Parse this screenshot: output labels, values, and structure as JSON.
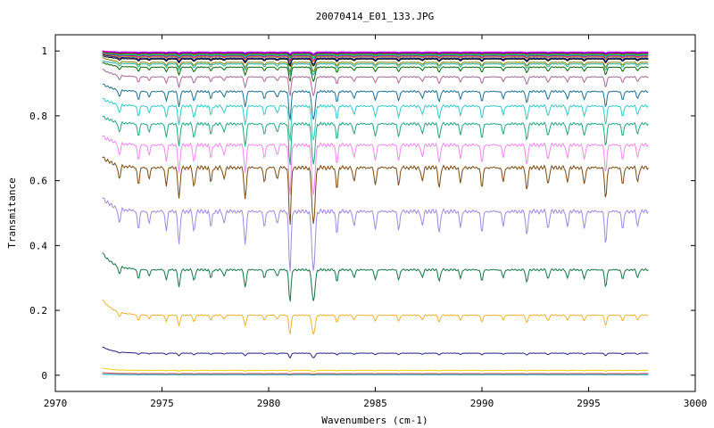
{
  "chart_data": {
    "type": "line",
    "title": "20070414_E01_133.JPG",
    "xlabel": "Wavenumbers (cm-1)",
    "ylabel": "Transmitance",
    "xlim": [
      2970,
      3000
    ],
    "ylim": [
      -0.05,
      1.05
    ],
    "x_ticks": [
      2970,
      2975,
      2980,
      2985,
      2990,
      2995,
      3000
    ],
    "y_ticks": [
      0,
      0.2,
      0.4,
      0.6,
      0.8,
      1
    ],
    "y_tick_labels": [
      "0",
      "0.2",
      "0.4",
      "0.6",
      "0.8",
      "1"
    ],
    "grid": false,
    "legend": "none",
    "x_range": [
      2972.2,
      2997.8
    ],
    "absorption_lines": [
      {
        "x": 2973.0,
        "depth": 0.25,
        "width": 0.07
      },
      {
        "x": 2973.9,
        "depth": 0.3,
        "width": 0.07
      },
      {
        "x": 2974.4,
        "depth": 0.2,
        "width": 0.07
      },
      {
        "x": 2975.2,
        "depth": 0.3,
        "width": 0.07
      },
      {
        "x": 2975.8,
        "depth": 0.55,
        "width": 0.07
      },
      {
        "x": 2976.5,
        "depth": 0.35,
        "width": 0.07
      },
      {
        "x": 2977.3,
        "depth": 0.25,
        "width": 0.07
      },
      {
        "x": 2977.9,
        "depth": 0.2,
        "width": 0.07
      },
      {
        "x": 2978.9,
        "depth": 0.55,
        "width": 0.07
      },
      {
        "x": 2979.8,
        "depth": 0.25,
        "width": 0.07
      },
      {
        "x": 2980.4,
        "depth": 0.2,
        "width": 0.07
      },
      {
        "x": 2981.0,
        "depth": 1.0,
        "width": 0.07
      },
      {
        "x": 2982.1,
        "depth": 1.0,
        "width": 0.1
      },
      {
        "x": 2983.2,
        "depth": 0.35,
        "width": 0.07
      },
      {
        "x": 2984.0,
        "depth": 0.25,
        "width": 0.07
      },
      {
        "x": 2985.0,
        "depth": 0.3,
        "width": 0.07
      },
      {
        "x": 2986.1,
        "depth": 0.3,
        "width": 0.07
      },
      {
        "x": 2987.2,
        "depth": 0.25,
        "width": 0.07
      },
      {
        "x": 2988.0,
        "depth": 0.35,
        "width": 0.07
      },
      {
        "x": 2989.0,
        "depth": 0.25,
        "width": 0.07
      },
      {
        "x": 2990.0,
        "depth": 0.35,
        "width": 0.07
      },
      {
        "x": 2991.0,
        "depth": 0.25,
        "width": 0.07
      },
      {
        "x": 2992.1,
        "depth": 0.4,
        "width": 0.07
      },
      {
        "x": 2993.1,
        "depth": 0.3,
        "width": 0.07
      },
      {
        "x": 2994.0,
        "depth": 0.25,
        "width": 0.07
      },
      {
        "x": 2994.8,
        "depth": 0.3,
        "width": 0.07
      },
      {
        "x": 2995.8,
        "depth": 0.55,
        "width": 0.07
      },
      {
        "x": 2996.6,
        "depth": 0.3,
        "width": 0.07
      },
      {
        "x": 2997.3,
        "depth": 0.25,
        "width": 0.07
      }
    ],
    "series": [
      {
        "color": "#ff00ff",
        "baseline": 0.997,
        "start": 1.0,
        "depth": 0.005
      },
      {
        "color": "#0000ff",
        "baseline": 0.995,
        "start": 1.0,
        "depth": 0.007
      },
      {
        "color": "#ff0000",
        "baseline": 0.993,
        "start": 0.998,
        "depth": 0.008
      },
      {
        "color": "#00aa00",
        "baseline": 0.99,
        "start": 0.997,
        "depth": 0.01
      },
      {
        "color": "#00c0c0",
        "baseline": 0.988,
        "start": 0.995,
        "depth": 0.012
      },
      {
        "color": "#a000a0",
        "baseline": 0.985,
        "start": 0.994,
        "depth": 0.014
      },
      {
        "color": "#c08000",
        "baseline": 0.982,
        "start": 0.992,
        "depth": 0.016
      },
      {
        "color": "#000080",
        "baseline": 0.978,
        "start": 0.99,
        "depth": 0.02
      },
      {
        "color": "#000000",
        "baseline": 0.975,
        "start": 0.985,
        "depth": 0.022
      },
      {
        "color": "#808000",
        "baseline": 0.965,
        "start": 0.98,
        "depth": 0.03
      },
      {
        "color": "#20b0a0",
        "baseline": 0.96,
        "start": 0.97,
        "depth": 0.035
      },
      {
        "color": "#006600",
        "baseline": 0.95,
        "start": 0.965,
        "depth": 0.045
      },
      {
        "color": "#aa6699",
        "baseline": 0.92,
        "start": 0.945,
        "depth": 0.06
      },
      {
        "color": "#1a6f8f",
        "baseline": 0.875,
        "start": 0.9,
        "depth": 0.09
      },
      {
        "color": "#30c8c8",
        "baseline": 0.83,
        "start": 0.855,
        "depth": 0.11
      },
      {
        "color": "#20a878",
        "baseline": 0.775,
        "start": 0.8,
        "depth": 0.13
      },
      {
        "color": "#ee88ee",
        "baseline": 0.71,
        "start": 0.74,
        "depth": 0.16
      },
      {
        "color": "#7a4a10",
        "baseline": 0.64,
        "start": 0.675,
        "depth": 0.18
      },
      {
        "color": "#9f88e0",
        "baseline": 0.505,
        "start": 0.55,
        "depth": 0.19
      },
      {
        "color": "#117744",
        "baseline": 0.325,
        "start": 0.38,
        "depth": 0.1
      },
      {
        "color": "#f0b030",
        "baseline": 0.185,
        "start": 0.235,
        "depth": 0.06
      },
      {
        "color": "#222288",
        "baseline": 0.068,
        "start": 0.088,
        "depth": 0.015
      },
      {
        "color": "#f2d000",
        "baseline": 0.015,
        "start": 0.022,
        "depth": 0.005
      },
      {
        "color": "#cc4444",
        "baseline": 0.005,
        "start": 0.008,
        "depth": 0.002
      },
      {
        "color": "#00a0c0",
        "baseline": 0.002,
        "start": 0.003,
        "depth": 0.001
      }
    ]
  }
}
